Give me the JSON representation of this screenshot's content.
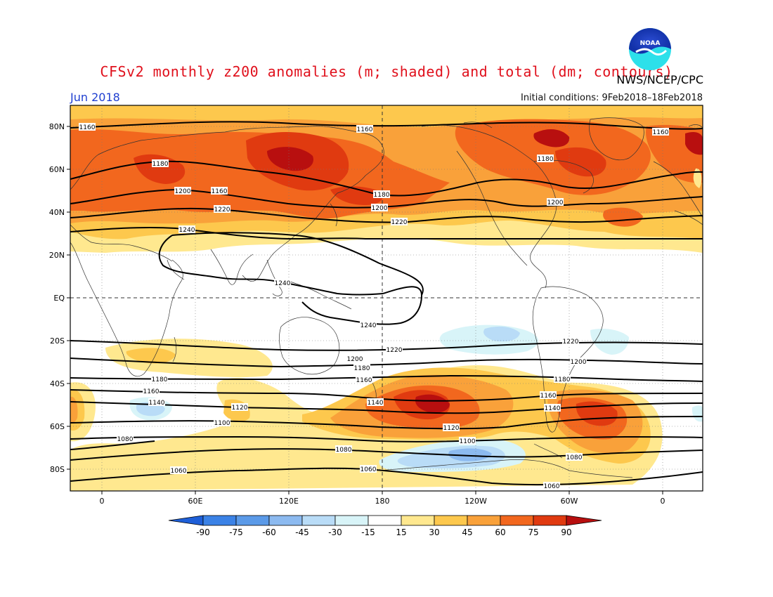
{
  "title": "CFSv2 monthly z200 anomalies (m; shaded) and total (dm; contours)",
  "credit": "NWS/NCEP/CPC",
  "logo_text": "NOAA",
  "month_label": "Jun 2018",
  "initial_conditions": "Initial conditions: 9Feb2018–18Feb2018",
  "lat_labels": [
    "80N",
    "60N",
    "40N",
    "20N",
    "EQ",
    "20S",
    "40S",
    "60S",
    "80S"
  ],
  "lon_labels": [
    "0",
    "60E",
    "120E",
    "180",
    "120W",
    "60W",
    "0"
  ],
  "colorbar": {
    "ticks": [
      "-90",
      "-75",
      "-60",
      "-45",
      "-30",
      "-15",
      "15",
      "30",
      "45",
      "60",
      "75",
      "90"
    ],
    "colors": [
      "#1e5fd8",
      "#3b82e6",
      "#5b9ae8",
      "#8cbaf0",
      "#b9dcf7",
      "#d8f4f8",
      "#ffffff",
      "#ffe88f",
      "#fdc84d",
      "#f9a13a",
      "#f2671e",
      "#e03a10",
      "#b80f0f"
    ]
  },
  "contour_labels": [
    {
      "text": "1160"
    },
    {
      "text": "1160"
    },
    {
      "text": "1160"
    },
    {
      "text": "1160"
    },
    {
      "text": "1180"
    },
    {
      "text": "1180"
    },
    {
      "text": "1180"
    },
    {
      "text": "1200"
    },
    {
      "text": "1200"
    },
    {
      "text": "1200"
    },
    {
      "text": "1220"
    },
    {
      "text": "1220"
    },
    {
      "text": "1240"
    },
    {
      "text": "1240"
    },
    {
      "text": "1240"
    },
    {
      "text": "1220"
    },
    {
      "text": "1220"
    },
    {
      "text": "1200"
    },
    {
      "text": "1200"
    },
    {
      "text": "1180"
    },
    {
      "text": "1180"
    },
    {
      "text": "1180"
    },
    {
      "text": "1160"
    },
    {
      "text": "1160"
    },
    {
      "text": "1140"
    },
    {
      "text": "1140"
    },
    {
      "text": "1140"
    },
    {
      "text": "1120"
    },
    {
      "text": "1120"
    },
    {
      "text": "1100"
    },
    {
      "text": "1100"
    },
    {
      "text": "1080"
    },
    {
      "text": "1080"
    },
    {
      "text": "1080"
    },
    {
      "text": "1060"
    },
    {
      "text": "1060"
    },
    {
      "text": "1060"
    },
    {
      "text": "1160"
    }
  ]
}
